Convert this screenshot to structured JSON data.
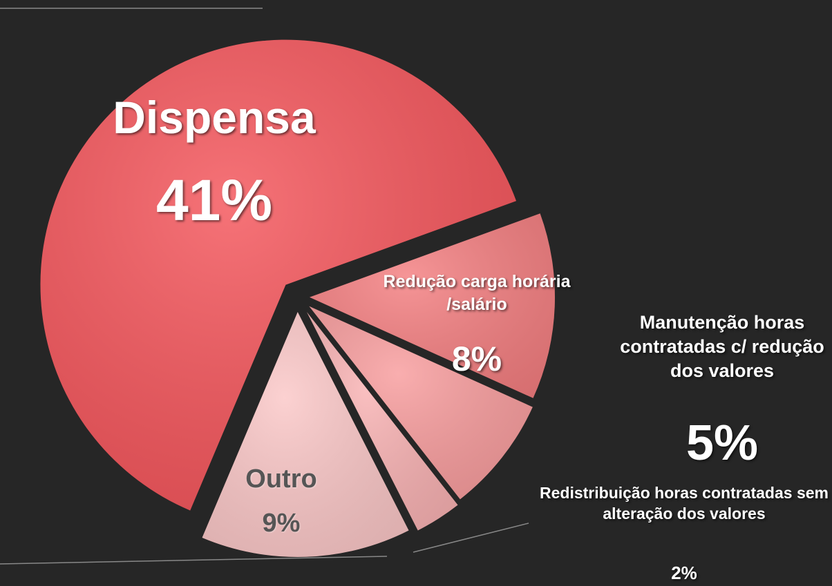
{
  "chart_data": {
    "type": "pie",
    "categories": [
      "Redução carga horária /salário",
      "Manutenção horas contratadas c/ redução dos valores",
      "Redistribuição horas contratadas sem alteração dos valores",
      "Outro",
      "Dispensa"
    ],
    "values": [
      8,
      5,
      2,
      9,
      41
    ],
    "value_labels": [
      "8%",
      "5%",
      "2%",
      "9%",
      "41%"
    ],
    "colors": [
      "#f47e80",
      "#f89c9d",
      "#f9b2b3",
      "#fbc7c7",
      "#f4545a"
    ]
  }
}
